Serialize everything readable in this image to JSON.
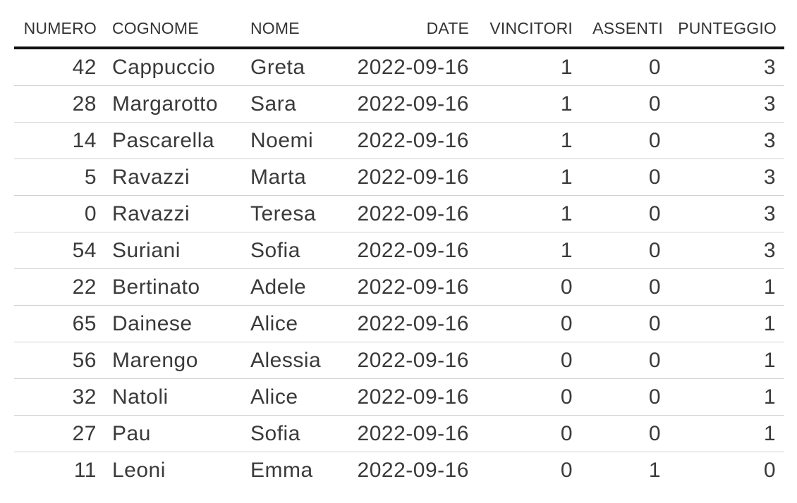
{
  "table": {
    "headers": {
      "numero": "NUMERO",
      "cognome": "COGNOME",
      "nome": "NOME",
      "date": "DATE",
      "vincitori": "VINCITORI",
      "assenti": "ASSENTI",
      "punteggio": "PUNTEGGIO"
    },
    "rows": [
      {
        "numero": "42",
        "cognome": "Cappuccio",
        "nome": "Greta",
        "date": "2022-09-16",
        "vincitori": "1",
        "assenti": "0",
        "punteggio": "3"
      },
      {
        "numero": "28",
        "cognome": "Margarotto",
        "nome": "Sara",
        "date": "2022-09-16",
        "vincitori": "1",
        "assenti": "0",
        "punteggio": "3"
      },
      {
        "numero": "14",
        "cognome": "Pascarella",
        "nome": "Noemi",
        "date": "2022-09-16",
        "vincitori": "1",
        "assenti": "0",
        "punteggio": "3"
      },
      {
        "numero": "5",
        "cognome": "Ravazzi",
        "nome": "Marta",
        "date": "2022-09-16",
        "vincitori": "1",
        "assenti": "0",
        "punteggio": "3"
      },
      {
        "numero": "0",
        "cognome": "Ravazzi",
        "nome": "Teresa",
        "date": "2022-09-16",
        "vincitori": "1",
        "assenti": "0",
        "punteggio": "3"
      },
      {
        "numero": "54",
        "cognome": "Suriani",
        "nome": "Sofia",
        "date": "2022-09-16",
        "vincitori": "1",
        "assenti": "0",
        "punteggio": "3"
      },
      {
        "numero": "22",
        "cognome": "Bertinato",
        "nome": "Adele",
        "date": "2022-09-16",
        "vincitori": "0",
        "assenti": "0",
        "punteggio": "1"
      },
      {
        "numero": "65",
        "cognome": "Dainese",
        "nome": "Alice",
        "date": "2022-09-16",
        "vincitori": "0",
        "assenti": "0",
        "punteggio": "1"
      },
      {
        "numero": "56",
        "cognome": "Marengo",
        "nome": "Alessia",
        "date": "2022-09-16",
        "vincitori": "0",
        "assenti": "0",
        "punteggio": "1"
      },
      {
        "numero": "32",
        "cognome": "Natoli",
        "nome": "Alice",
        "date": "2022-09-16",
        "vincitori": "0",
        "assenti": "0",
        "punteggio": "1"
      },
      {
        "numero": "27",
        "cognome": "Pau",
        "nome": "Sofia",
        "date": "2022-09-16",
        "vincitori": "0",
        "assenti": "0",
        "punteggio": "1"
      },
      {
        "numero": "11",
        "cognome": "Leoni",
        "nome": "Emma",
        "date": "2022-09-16",
        "vincitori": "0",
        "assenti": "1",
        "punteggio": "0"
      }
    ]
  }
}
